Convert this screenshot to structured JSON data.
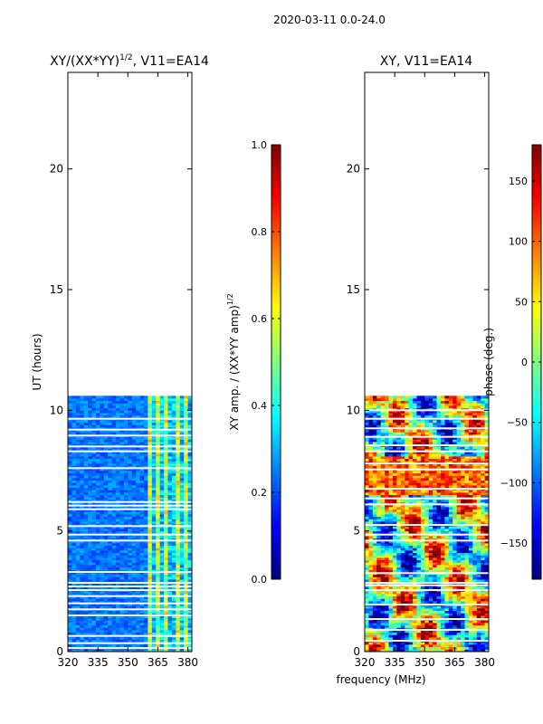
{
  "figure": {
    "suptitle": "2020-03-11 0.0-24.0",
    "xlabel": "frequency (MHz)"
  },
  "colors": {
    "jet": [
      "#00007f",
      "#0000ff",
      "#007fff",
      "#00ffff",
      "#7fff7f",
      "#ffff00",
      "#ff7f00",
      "#ff0000",
      "#7f0000"
    ],
    "gap": "#ffffff"
  },
  "chart_data": [
    {
      "type": "heatmap",
      "title_main": "XY/(XX*YY)",
      "title_sup": "1/2",
      "title_tail": ", V11=EA14",
      "xlabel": "",
      "ylabel": "UT (hours)",
      "xlim": [
        320,
        382
      ],
      "ylim": [
        0,
        24
      ],
      "xticks": [
        320,
        335,
        350,
        365,
        380
      ],
      "xtick_labels": [
        "320",
        "335",
        "350",
        "365",
        "380"
      ],
      "yticks": [
        0,
        5,
        10,
        15,
        20
      ],
      "ytick_labels": [
        "0",
        "5",
        "10",
        "15",
        "20"
      ],
      "data_time_range": [
        0,
        10.6
      ],
      "colorbar": {
        "label_main": "XY amp. / (XX*YY amp)",
        "label_sup": "1/2",
        "range": [
          0.0,
          1.0
        ],
        "ticks": [
          0.0,
          0.2,
          0.4,
          0.6,
          0.8,
          1.0
        ],
        "tick_labels": [
          "0.0",
          "0.2",
          "0.4",
          "0.6",
          "0.8",
          "1.0"
        ]
      }
    },
    {
      "type": "heatmap",
      "title_main": "XY, V11=EA14",
      "title_sup": "",
      "title_tail": "",
      "xlabel": "frequency (MHz)",
      "ylabel": "",
      "xlim": [
        320,
        382
      ],
      "ylim": [
        0,
        24
      ],
      "xticks": [
        320,
        335,
        350,
        365,
        380
      ],
      "xtick_labels": [
        "320",
        "335",
        "350",
        "365",
        "380"
      ],
      "yticks": [
        0,
        5,
        10,
        15,
        20
      ],
      "ytick_labels": [
        "0",
        "5",
        "10",
        "15",
        "20"
      ],
      "data_time_range": [
        0,
        10.6
      ],
      "colorbar": {
        "label_main": "phase (deg.)",
        "label_sup": "",
        "range": [
          -180,
          180
        ],
        "ticks": [
          -150,
          -100,
          -50,
          0,
          50,
          100,
          150
        ],
        "tick_labels": [
          "−150",
          "−100",
          "−50",
          "0",
          "50",
          "100",
          "150"
        ]
      }
    }
  ]
}
